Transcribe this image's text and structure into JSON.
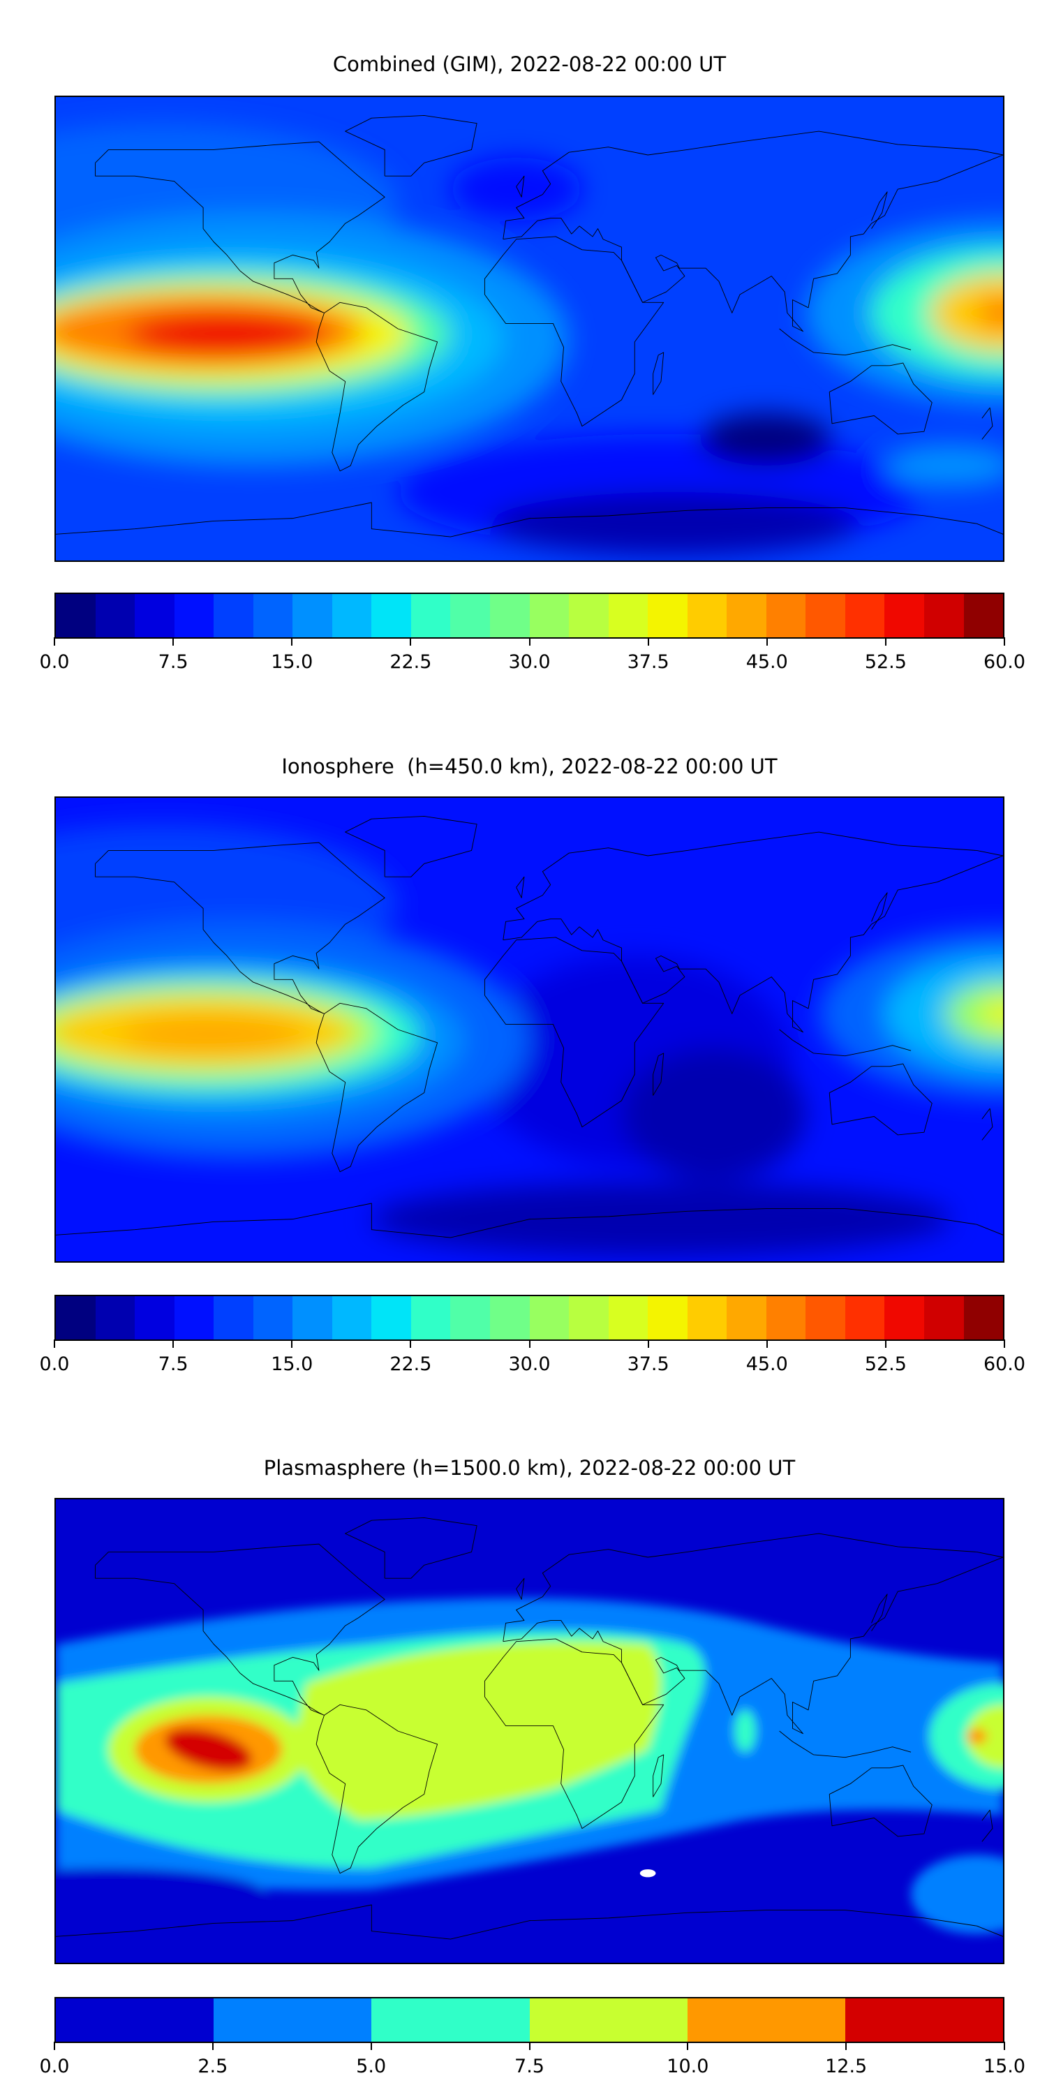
{
  "chart_data": [
    {
      "type": "heatmap",
      "title": "Combined (GIM), 2022-08-22 00:00 UT",
      "colorbar": {
        "range": [
          0,
          60
        ],
        "ticks": [
          "0.0",
          "7.5",
          "15.0",
          "22.5",
          "30.0",
          "37.5",
          "45.0",
          "52.5",
          "60.0"
        ],
        "levels": 24,
        "colors": [
          "#000080",
          "#0000b0",
          "#0000e0",
          "#0010ff",
          "#0040ff",
          "#0064ff",
          "#0090ff",
          "#00b8ff",
          "#00e4f8",
          "#30ffc8",
          "#50ffa8",
          "#70ff88",
          "#98ff60",
          "#b8ff40",
          "#d8ff20",
          "#f4f400",
          "#ffcc00",
          "#ffa800",
          "#ff8000",
          "#ff5800",
          "#ff3000",
          "#f00800",
          "#d00000",
          "#900000"
        ]
      },
      "peak": {
        "region": "eastern Pacific near equator",
        "approx_value": 55
      }
    },
    {
      "type": "heatmap",
      "title": "Ionosphere  (h=450.0 km), 2022-08-22 00:00 UT",
      "colorbar": {
        "range": [
          0,
          60
        ],
        "ticks": [
          "0.0",
          "7.5",
          "15.0",
          "22.5",
          "30.0",
          "37.5",
          "45.0",
          "52.5",
          "60.0"
        ],
        "levels": 24,
        "colors": [
          "#000080",
          "#0000b0",
          "#0000e0",
          "#0010ff",
          "#0040ff",
          "#0064ff",
          "#0090ff",
          "#00b8ff",
          "#00e4f8",
          "#30ffc8",
          "#50ffa8",
          "#70ff88",
          "#98ff60",
          "#b8ff40",
          "#d8ff20",
          "#f4f400",
          "#ffcc00",
          "#ffa800",
          "#ff8000",
          "#ff5800",
          "#ff3000",
          "#f00800",
          "#d00000",
          "#900000"
        ]
      },
      "peak": {
        "region": "eastern Pacific near equator",
        "approx_value": 45
      }
    },
    {
      "type": "heatmap",
      "title": "Plasmasphere (h=1500.0 km), 2022-08-22 00:00 UT",
      "colorbar": {
        "range": [
          0,
          15
        ],
        "ticks": [
          "0.0",
          "2.5",
          "5.0",
          "7.5",
          "10.0",
          "12.5",
          "15.0"
        ],
        "levels": 6,
        "colors": [
          "#0000d0",
          "#0080ff",
          "#30ffc8",
          "#c8ff30",
          "#ff9800",
          "#d40000"
        ]
      },
      "peak": {
        "region": "eastern Pacific near equator",
        "approx_value": 13
      }
    }
  ]
}
